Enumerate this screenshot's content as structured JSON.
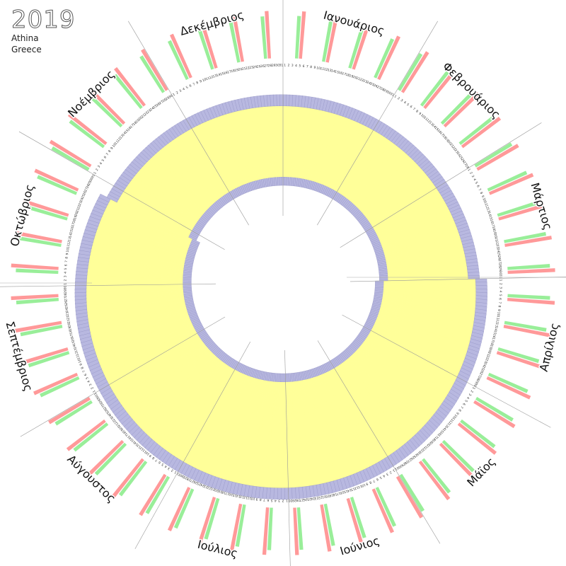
{
  "header": {
    "year": "2019",
    "city": "Athina",
    "country": "Greece"
  },
  "chart_data": {
    "type": "radial-calendar",
    "title": "2019",
    "start": "top, clockwise",
    "months": [
      {
        "name": "Ιανουάριος",
        "days": 31
      },
      {
        "name": "Φεβρουάριος",
        "days": 28
      },
      {
        "name": "Μάρτιος",
        "days": 31
      },
      {
        "name": "Απρίλιος",
        "days": 30
      },
      {
        "name": "Μάϊος",
        "days": 31
      },
      {
        "name": "Ιούνιος",
        "days": 30
      },
      {
        "name": "Ιούλιος",
        "days": 31
      },
      {
        "name": "Αύγουστος",
        "days": 31
      },
      {
        "name": "Σεπτέμβριος",
        "days": 30
      },
      {
        "name": "Οκτώβριος",
        "days": 31
      },
      {
        "name": "Νοέμβριος",
        "days": 30
      },
      {
        "name": "Δεκέμβριος",
        "days": 31
      }
    ],
    "first_weekday": 2,
    "dst_start_day": 90,
    "dst_end_day": 300,
    "colors": {
      "daylight": "#ffff99",
      "twilight": "#b8b8e0",
      "twilight_dark": "#8888bb",
      "saturday": "#99ee99",
      "sunday": "#ff9999"
    }
  }
}
